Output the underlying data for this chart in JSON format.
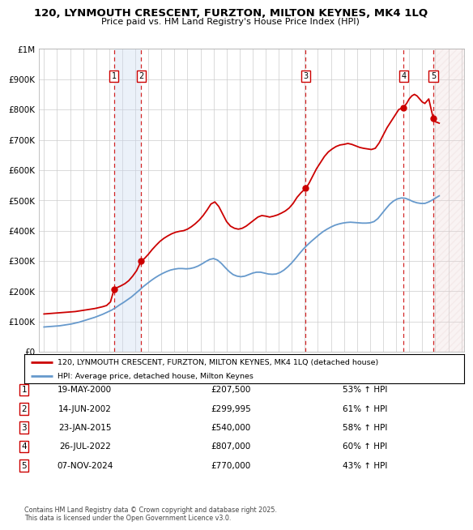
{
  "title": "120, LYNMOUTH CRESCENT, FURZTON, MILTON KEYNES, MK4 1LQ",
  "subtitle": "Price paid vs. HM Land Registry's House Price Index (HPI)",
  "red_line_label": "120, LYNMOUTH CRESCENT, FURZTON, MILTON KEYNES, MK4 1LQ (detached house)",
  "blue_line_label": "HPI: Average price, detached house, Milton Keynes",
  "footer": "Contains HM Land Registry data © Crown copyright and database right 2025.\nThis data is licensed under the Open Government Licence v3.0.",
  "ylim": [
    0,
    1000000
  ],
  "xlim_start": 1994.6,
  "xlim_end": 2027.2,
  "yticks": [
    0,
    100000,
    200000,
    300000,
    400000,
    500000,
    600000,
    700000,
    800000,
    900000,
    1000000
  ],
  "ytick_labels": [
    "£0",
    "£100K",
    "£200K",
    "£300K",
    "£400K",
    "£500K",
    "£600K",
    "£700K",
    "£800K",
    "£900K",
    "£1M"
  ],
  "transactions": [
    {
      "num": 1,
      "date": "19-MAY-2000",
      "price": 207500,
      "pct": "53%",
      "year": 2000.38
    },
    {
      "num": 2,
      "date": "14-JUN-2002",
      "price": 299995,
      "pct": "61%",
      "year": 2002.45
    },
    {
      "num": 3,
      "date": "23-JAN-2015",
      "price": 540000,
      "pct": "58%",
      "year": 2015.06
    },
    {
      "num": 4,
      "date": "26-JUL-2022",
      "price": 807000,
      "pct": "60%",
      "year": 2022.56
    },
    {
      "num": 5,
      "date": "07-NOV-2024",
      "price": 770000,
      "pct": "43%",
      "year": 2024.85
    }
  ],
  "red_line_color": "#cc0000",
  "blue_line_color": "#6699cc",
  "grid_color": "#cccccc",
  "background_color": "#ffffff",
  "shade_between_1_2_color": "#c8d8f0",
  "shade_last_color": "#e8d0d0",
  "red_data": [
    [
      1995.0,
      125000
    ],
    [
      1995.3,
      126000
    ],
    [
      1995.6,
      127000
    ],
    [
      1995.9,
      128000
    ],
    [
      1996.2,
      129000
    ],
    [
      1996.5,
      130000
    ],
    [
      1996.8,
      131000
    ],
    [
      1997.1,
      132000
    ],
    [
      1997.4,
      133000
    ],
    [
      1997.7,
      135000
    ],
    [
      1998.0,
      137000
    ],
    [
      1998.3,
      139000
    ],
    [
      1998.6,
      141000
    ],
    [
      1998.9,
      143000
    ],
    [
      1999.2,
      146000
    ],
    [
      1999.5,
      149000
    ],
    [
      1999.8,
      153000
    ],
    [
      2000.1,
      165000
    ],
    [
      2000.38,
      207500
    ],
    [
      2000.6,
      212000
    ],
    [
      2000.9,
      218000
    ],
    [
      2001.2,
      225000
    ],
    [
      2001.5,
      235000
    ],
    [
      2001.8,
      250000
    ],
    [
      2002.1,
      268000
    ],
    [
      2002.45,
      299995
    ],
    [
      2002.7,
      308000
    ],
    [
      2003.0,
      322000
    ],
    [
      2003.3,
      338000
    ],
    [
      2003.6,
      352000
    ],
    [
      2003.9,
      365000
    ],
    [
      2004.2,
      375000
    ],
    [
      2004.5,
      383000
    ],
    [
      2004.8,
      390000
    ],
    [
      2005.1,
      395000
    ],
    [
      2005.4,
      398000
    ],
    [
      2005.7,
      400000
    ],
    [
      2006.0,
      405000
    ],
    [
      2006.3,
      413000
    ],
    [
      2006.6,
      423000
    ],
    [
      2006.9,
      435000
    ],
    [
      2007.2,
      450000
    ],
    [
      2007.5,
      468000
    ],
    [
      2007.8,
      488000
    ],
    [
      2008.1,
      495000
    ],
    [
      2008.4,
      480000
    ],
    [
      2008.7,
      455000
    ],
    [
      2009.0,
      430000
    ],
    [
      2009.3,
      415000
    ],
    [
      2009.6,
      408000
    ],
    [
      2009.9,
      405000
    ],
    [
      2010.2,
      408000
    ],
    [
      2010.5,
      415000
    ],
    [
      2010.8,
      425000
    ],
    [
      2011.1,
      435000
    ],
    [
      2011.4,
      445000
    ],
    [
      2011.7,
      450000
    ],
    [
      2012.0,
      448000
    ],
    [
      2012.3,
      445000
    ],
    [
      2012.6,
      448000
    ],
    [
      2012.9,
      452000
    ],
    [
      2013.2,
      458000
    ],
    [
      2013.5,
      465000
    ],
    [
      2013.8,
      475000
    ],
    [
      2014.1,
      490000
    ],
    [
      2014.4,
      510000
    ],
    [
      2014.7,
      525000
    ],
    [
      2015.06,
      540000
    ],
    [
      2015.3,
      555000
    ],
    [
      2015.6,
      580000
    ],
    [
      2015.9,
      605000
    ],
    [
      2016.2,
      625000
    ],
    [
      2016.5,
      645000
    ],
    [
      2016.8,
      660000
    ],
    [
      2017.1,
      670000
    ],
    [
      2017.4,
      678000
    ],
    [
      2017.7,
      683000
    ],
    [
      2018.0,
      685000
    ],
    [
      2018.3,
      688000
    ],
    [
      2018.6,
      685000
    ],
    [
      2018.9,
      680000
    ],
    [
      2019.2,
      675000
    ],
    [
      2019.5,
      672000
    ],
    [
      2019.8,
      670000
    ],
    [
      2020.1,
      668000
    ],
    [
      2020.4,
      672000
    ],
    [
      2020.7,
      690000
    ],
    [
      2021.0,
      715000
    ],
    [
      2021.3,
      740000
    ],
    [
      2021.6,
      760000
    ],
    [
      2021.9,
      780000
    ],
    [
      2022.2,
      800000
    ],
    [
      2022.56,
      807000
    ],
    [
      2022.8,
      820000
    ],
    [
      2023.0,
      835000
    ],
    [
      2023.2,
      845000
    ],
    [
      2023.4,
      850000
    ],
    [
      2023.6,
      845000
    ],
    [
      2023.8,
      835000
    ],
    [
      2024.0,
      825000
    ],
    [
      2024.2,
      820000
    ],
    [
      2024.5,
      835000
    ],
    [
      2024.85,
      770000
    ],
    [
      2025.0,
      760000
    ],
    [
      2025.3,
      755000
    ]
  ],
  "blue_data": [
    [
      1995.0,
      82000
    ],
    [
      1995.3,
      83000
    ],
    [
      1995.6,
      84000
    ],
    [
      1995.9,
      85000
    ],
    [
      1996.2,
      86000
    ],
    [
      1996.5,
      88000
    ],
    [
      1996.8,
      90000
    ],
    [
      1997.1,
      92000
    ],
    [
      1997.4,
      95000
    ],
    [
      1997.7,
      98000
    ],
    [
      1998.0,
      102000
    ],
    [
      1998.3,
      106000
    ],
    [
      1998.6,
      110000
    ],
    [
      1998.9,
      114000
    ],
    [
      1999.2,
      119000
    ],
    [
      1999.5,
      124000
    ],
    [
      1999.8,
      130000
    ],
    [
      2000.2,
      138000
    ],
    [
      2000.5,
      146000
    ],
    [
      2000.8,
      155000
    ],
    [
      2001.1,
      163000
    ],
    [
      2001.4,
      172000
    ],
    [
      2001.7,
      181000
    ],
    [
      2002.0,
      192000
    ],
    [
      2002.3,
      203000
    ],
    [
      2002.6,
      215000
    ],
    [
      2002.9,
      225000
    ],
    [
      2003.2,
      235000
    ],
    [
      2003.5,
      244000
    ],
    [
      2003.8,
      252000
    ],
    [
      2004.1,
      259000
    ],
    [
      2004.4,
      265000
    ],
    [
      2004.7,
      270000
    ],
    [
      2005.0,
      273000
    ],
    [
      2005.3,
      275000
    ],
    [
      2005.6,
      275000
    ],
    [
      2005.9,
      274000
    ],
    [
      2006.2,
      275000
    ],
    [
      2006.5,
      278000
    ],
    [
      2006.8,
      283000
    ],
    [
      2007.1,
      290000
    ],
    [
      2007.4,
      298000
    ],
    [
      2007.7,
      305000
    ],
    [
      2008.0,
      308000
    ],
    [
      2008.3,
      303000
    ],
    [
      2008.6,
      292000
    ],
    [
      2008.9,
      278000
    ],
    [
      2009.2,
      265000
    ],
    [
      2009.5,
      255000
    ],
    [
      2009.8,
      250000
    ],
    [
      2010.1,
      248000
    ],
    [
      2010.4,
      250000
    ],
    [
      2010.7,
      255000
    ],
    [
      2011.0,
      260000
    ],
    [
      2011.3,
      263000
    ],
    [
      2011.6,
      263000
    ],
    [
      2011.9,
      260000
    ],
    [
      2012.2,
      257000
    ],
    [
      2012.5,
      256000
    ],
    [
      2012.8,
      257000
    ],
    [
      2013.1,
      262000
    ],
    [
      2013.4,
      270000
    ],
    [
      2013.7,
      281000
    ],
    [
      2014.0,
      294000
    ],
    [
      2014.3,
      309000
    ],
    [
      2014.6,
      325000
    ],
    [
      2014.9,
      340000
    ],
    [
      2015.2,
      353000
    ],
    [
      2015.5,
      365000
    ],
    [
      2015.8,
      376000
    ],
    [
      2016.1,
      387000
    ],
    [
      2016.4,
      397000
    ],
    [
      2016.7,
      405000
    ],
    [
      2017.0,
      412000
    ],
    [
      2017.3,
      418000
    ],
    [
      2017.6,
      422000
    ],
    [
      2017.9,
      425000
    ],
    [
      2018.2,
      427000
    ],
    [
      2018.5,
      428000
    ],
    [
      2018.8,
      427000
    ],
    [
      2019.1,
      426000
    ],
    [
      2019.4,
      425000
    ],
    [
      2019.7,
      425000
    ],
    [
      2020.0,
      426000
    ],
    [
      2020.3,
      430000
    ],
    [
      2020.6,
      440000
    ],
    [
      2020.9,
      456000
    ],
    [
      2021.2,
      472000
    ],
    [
      2021.5,
      487000
    ],
    [
      2021.8,
      498000
    ],
    [
      2022.1,
      505000
    ],
    [
      2022.4,
      508000
    ],
    [
      2022.7,
      507000
    ],
    [
      2023.0,
      502000
    ],
    [
      2023.3,
      496000
    ],
    [
      2023.6,
      492000
    ],
    [
      2023.9,
      490000
    ],
    [
      2024.2,
      490000
    ],
    [
      2024.5,
      495000
    ],
    [
      2024.8,
      502000
    ],
    [
      2025.1,
      510000
    ],
    [
      2025.3,
      515000
    ]
  ]
}
